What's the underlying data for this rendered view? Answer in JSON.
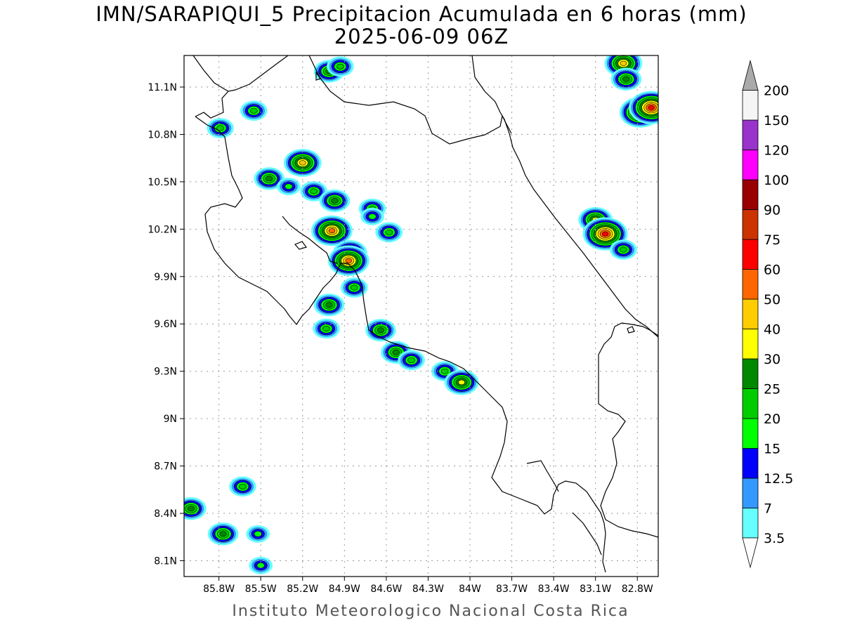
{
  "title": {
    "line1": "IMN/SARAPIQUI_5 Precipitacion Acumulada en 6 horas (mm)",
    "line2": "2025-06-09 06Z"
  },
  "credit": "Instituto Meteorologico Nacional Costa Rica",
  "map": {
    "lon_range": [
      -86.05,
      -82.65
    ],
    "lat_range": [
      8.0,
      11.3
    ],
    "lon_ticks": [
      {
        "value": -85.8,
        "label": "85.8W"
      },
      {
        "value": -85.5,
        "label": "85.5W"
      },
      {
        "value": -85.2,
        "label": "85.2W"
      },
      {
        "value": -84.9,
        "label": "84.9W"
      },
      {
        "value": -84.6,
        "label": "84.6W"
      },
      {
        "value": -84.3,
        "label": "84.3W"
      },
      {
        "value": -84.0,
        "label": "84W"
      },
      {
        "value": -83.7,
        "label": "83.7W"
      },
      {
        "value": -83.4,
        "label": "83.4W"
      },
      {
        "value": -83.1,
        "label": "83.1W"
      },
      {
        "value": -82.8,
        "label": "82.8W"
      }
    ],
    "lat_ticks": [
      {
        "value": 8.1,
        "label": "8.1N"
      },
      {
        "value": 8.4,
        "label": "8.4N"
      },
      {
        "value": 8.7,
        "label": "8.7N"
      },
      {
        "value": 9.0,
        "label": "9N"
      },
      {
        "value": 9.3,
        "label": "9.3N"
      },
      {
        "value": 9.6,
        "label": "9.6N"
      },
      {
        "value": 9.9,
        "label": "9.9N"
      },
      {
        "value": 10.2,
        "label": "10.2N"
      },
      {
        "value": 10.5,
        "label": "10.5N"
      },
      {
        "value": 10.8,
        "label": "10.8N"
      },
      {
        "value": 11.1,
        "label": "11.1N"
      }
    ]
  },
  "legend": {
    "levels": [
      {
        "label": "3.5",
        "color": "#66ffff"
      },
      {
        "label": "7",
        "color": "#3399ff"
      },
      {
        "label": "12.5",
        "color": "#0000ff"
      },
      {
        "label": "15",
        "color": "#00ff00"
      },
      {
        "label": "20",
        "color": "#00cc00"
      },
      {
        "label": "25",
        "color": "#008800"
      },
      {
        "label": "30",
        "color": "#ffff00"
      },
      {
        "label": "40",
        "color": "#ffcc00"
      },
      {
        "label": "50",
        "color": "#ff6600"
      },
      {
        "label": "60",
        "color": "#ff0000"
      },
      {
        "label": "75",
        "color": "#cc3300"
      },
      {
        "label": "90",
        "color": "#990000"
      },
      {
        "label": "100",
        "color": "#ff00ff"
      },
      {
        "label": "120",
        "color": "#9933cc"
      },
      {
        "label": "150",
        "color": "#f5f5f5"
      },
      {
        "label": "200",
        "color": "#aaaaaa"
      }
    ]
  },
  "precipitation_cells": [
    {
      "lon": -85.01,
      "lat": 11.2,
      "peak_mm": 25
    },
    {
      "lon": -84.93,
      "lat": 11.23,
      "peak_mm": 20
    },
    {
      "lon": -85.55,
      "lat": 10.95,
      "peak_mm": 20
    },
    {
      "lon": -85.79,
      "lat": 10.84,
      "peak_mm": 20
    },
    {
      "lon": -85.2,
      "lat": 10.62,
      "peak_mm": 40
    },
    {
      "lon": -85.44,
      "lat": 10.52,
      "peak_mm": 25
    },
    {
      "lon": -85.3,
      "lat": 10.47,
      "peak_mm": 15
    },
    {
      "lon": -85.12,
      "lat": 10.44,
      "peak_mm": 20
    },
    {
      "lon": -84.97,
      "lat": 10.38,
      "peak_mm": 25
    },
    {
      "lon": -84.7,
      "lat": 10.33,
      "peak_mm": 20
    },
    {
      "lon": -84.7,
      "lat": 10.28,
      "peak_mm": 15
    },
    {
      "lon": -84.99,
      "lat": 10.19,
      "peak_mm": 50
    },
    {
      "lon": -84.86,
      "lat": 10.05,
      "peak_mm": 30
    },
    {
      "lon": -84.87,
      "lat": 10.0,
      "peak_mm": 50
    },
    {
      "lon": -84.58,
      "lat": 10.18,
      "peak_mm": 20
    },
    {
      "lon": -84.83,
      "lat": 9.83,
      "peak_mm": 20
    },
    {
      "lon": -85.01,
      "lat": 9.72,
      "peak_mm": 25
    },
    {
      "lon": -85.03,
      "lat": 9.57,
      "peak_mm": 20
    },
    {
      "lon": -84.64,
      "lat": 9.56,
      "peak_mm": 25
    },
    {
      "lon": -84.53,
      "lat": 9.42,
      "peak_mm": 25
    },
    {
      "lon": -84.42,
      "lat": 9.37,
      "peak_mm": 20
    },
    {
      "lon": -84.18,
      "lat": 9.3,
      "peak_mm": 20
    },
    {
      "lon": -84.06,
      "lat": 9.23,
      "peak_mm": 30
    },
    {
      "lon": -83.1,
      "lat": 10.26,
      "peak_mm": 30
    },
    {
      "lon": -83.03,
      "lat": 10.17,
      "peak_mm": 60
    },
    {
      "lon": -82.9,
      "lat": 10.07,
      "peak_mm": 20
    },
    {
      "lon": -82.78,
      "lat": 10.94,
      "peak_mm": 50
    },
    {
      "lon": -82.7,
      "lat": 10.97,
      "peak_mm": 60
    },
    {
      "lon": -82.9,
      "lat": 11.25,
      "peak_mm": 40
    },
    {
      "lon": -82.88,
      "lat": 11.15,
      "peak_mm": 25
    },
    {
      "lon": -86.0,
      "lat": 8.43,
      "peak_mm": 25
    },
    {
      "lon": -85.77,
      "lat": 8.27,
      "peak_mm": 25
    },
    {
      "lon": -85.63,
      "lat": 8.57,
      "peak_mm": 20
    },
    {
      "lon": -85.52,
      "lat": 8.27,
      "peak_mm": 15
    },
    {
      "lon": -85.5,
      "lat": 8.07,
      "peak_mm": 15
    }
  ]
}
